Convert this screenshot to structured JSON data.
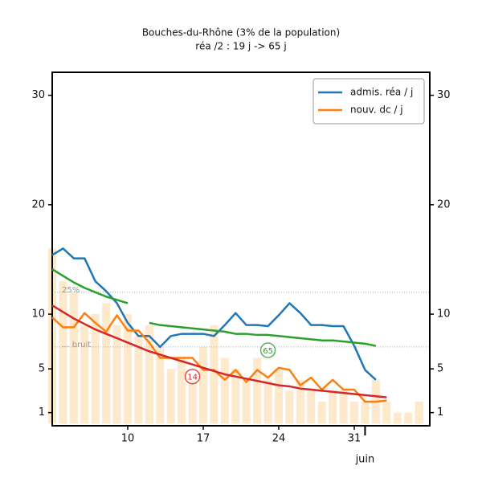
{
  "chart_data": {
    "type": "line",
    "title": "Bouches-du-Rhône (3% de la population)",
    "subtitle": "réa /2 : 19 j -> 65 j",
    "x": [
      3,
      4,
      5,
      6,
      7,
      8,
      9,
      10,
      11,
      12,
      13,
      14,
      15,
      16,
      17,
      18,
      19,
      20,
      21,
      22,
      23,
      24,
      25,
      26,
      27,
      28,
      29,
      30,
      31,
      32,
      33,
      34,
      35,
      36,
      37
    ],
    "xlim": [
      3,
      38
    ],
    "xticks": [
      10,
      17,
      24,
      31
    ],
    "month_label": {
      "text": "juin",
      "x": 32
    },
    "ylim": [
      -0.2,
      32.1
    ],
    "yticks": [
      1,
      5,
      10,
      20,
      30
    ],
    "legend": "upper right",
    "bars": {
      "color": "#fde9cc",
      "values": [
        16,
        13,
        12,
        9,
        10,
        11,
        9,
        10,
        8,
        9,
        7,
        5,
        6,
        4,
        7,
        9,
        6,
        5,
        4,
        6,
        4,
        5,
        3,
        4,
        3,
        2,
        3,
        3,
        2,
        2,
        4,
        2,
        1,
        1,
        2
      ]
    },
    "series": [
      {
        "name": "admis. réa / j",
        "color": "#1f77b4",
        "values": [
          15.4,
          16,
          15.1,
          15.1,
          13,
          12.1,
          11,
          9.2,
          8,
          8,
          7,
          8,
          8.2,
          8.2,
          8.2,
          8,
          9,
          10.1,
          9,
          9,
          8.9,
          9.9,
          11,
          10.1,
          9,
          9,
          8.9,
          8.9,
          7.1,
          4.9,
          4.0,
          null,
          null,
          null,
          null
        ]
      },
      {
        "name": "nouv. dc / j",
        "color": "#ff7f0e",
        "values": [
          9.7,
          8.8,
          8.8,
          10.1,
          9.2,
          8.4,
          9.9,
          8.5,
          8.5,
          7.4,
          6.0,
          6.0,
          6.0,
          6.0,
          4.9,
          4.9,
          4.0,
          4.9,
          3.8,
          4.9,
          4.2,
          5.1,
          4.9,
          3.5,
          4.2,
          3.1,
          4.0,
          3.1,
          3.1,
          2.0,
          2.0,
          2.1,
          null,
          null,
          null
        ]
      },
      {
        "color": "#2ca02c",
        "values": [
          14.1,
          13.5,
          12.9,
          12.4,
          12.0,
          11.6,
          11.3,
          11.0,
          null,
          9.2,
          9.0,
          8.9,
          8.8,
          8.7,
          8.6,
          8.5,
          8.4,
          8.2,
          8.2,
          8.1,
          8.1,
          8.0,
          7.9,
          7.8,
          7.7,
          7.6,
          7.6,
          7.5,
          7.4,
          7.3,
          7.1,
          null,
          null,
          null,
          null
        ]
      },
      {
        "color": "#d62728",
        "values": [
          10.8,
          10.2,
          9.6,
          9.1,
          8.6,
          8.2,
          7.8,
          7.4,
          7.0,
          6.6,
          6.3,
          6.0,
          5.7,
          5.4,
          5.1,
          4.8,
          4.5,
          4.3,
          4.1,
          3.9,
          3.7,
          3.5,
          3.4,
          3.2,
          3.1,
          3.0,
          2.9,
          2.8,
          2.7,
          2.6,
          2.5,
          2.4,
          null,
          null,
          null
        ]
      }
    ],
    "reference_lines": [
      {
        "label": "25%",
        "y": 12
      },
      {
        "label": "... bruit",
        "y": 7
      }
    ],
    "annotations": [
      {
        "text": "14",
        "x": 16,
        "y": 4.3,
        "color": "#d62728"
      },
      {
        "text": "65",
        "x": 23,
        "y": 6.7,
        "color": "#2ca02c"
      }
    ]
  }
}
